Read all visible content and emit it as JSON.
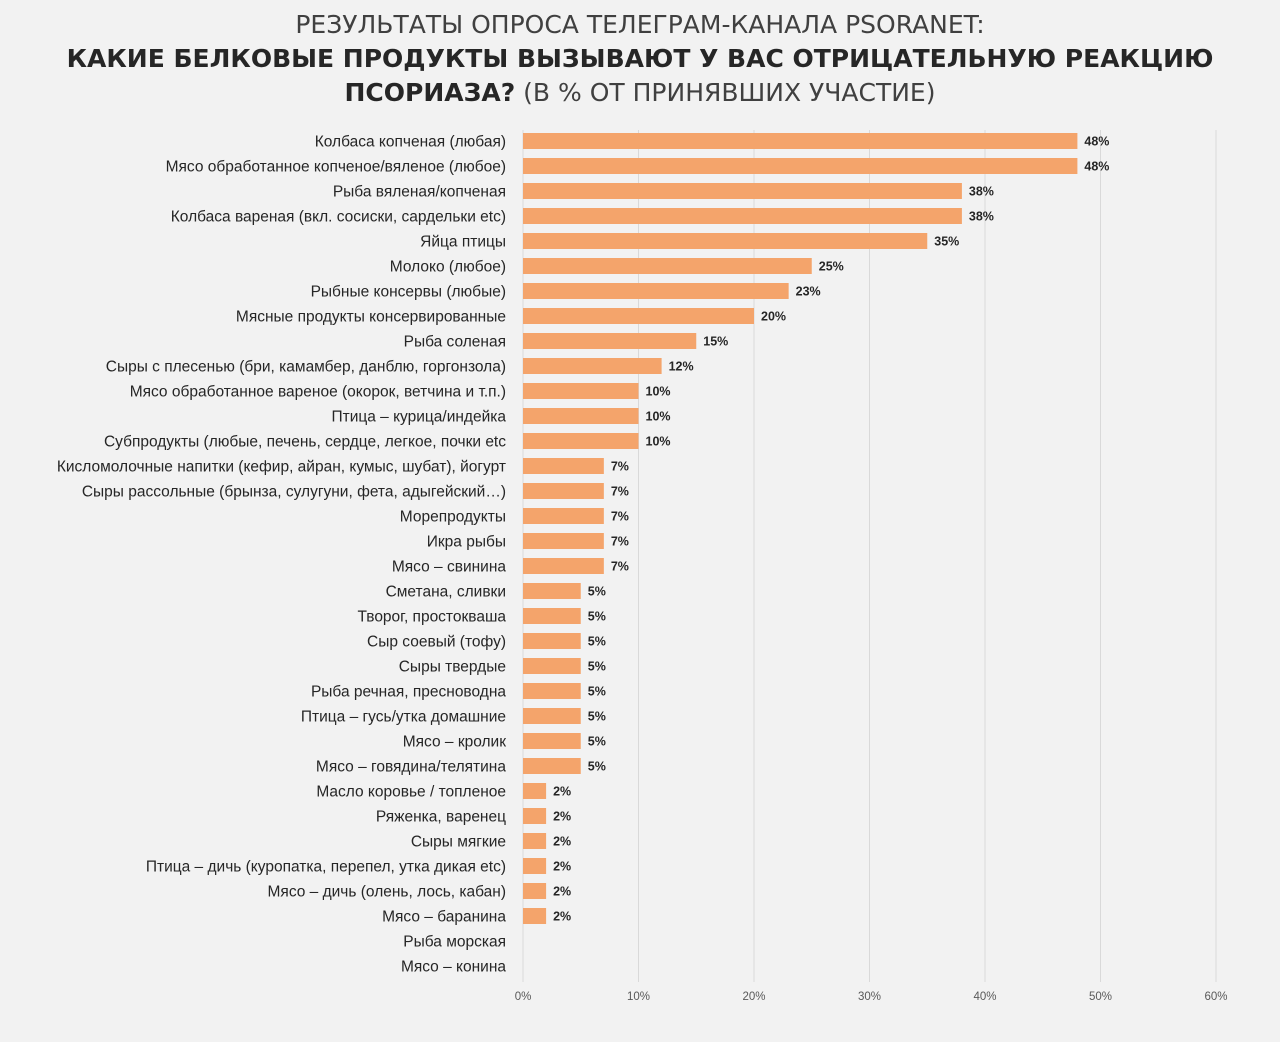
{
  "title": {
    "line1": "РЕЗУЛЬТАТЫ ОПРОСА ТЕЛЕГРАМ-КАНАЛА PSORANET:",
    "line2": "КАКИЕ БЕЛКОВЫЕ ПРОДУКТЫ ВЫЗЫВАЮТ У ВАС ОТРИЦАТЕЛЬНУЮ РЕАКЦИЮ",
    "line3_bold": "ПСОРИАЗА?",
    "line3_rest": " (В % ОТ ПРИНЯВШИХ УЧАСТИЕ)"
  },
  "colors": {
    "bar": "#f4a46b",
    "grid": "#d9d9d9",
    "background": "#f2f2f2"
  },
  "chart_data": {
    "type": "bar",
    "orientation": "horizontal",
    "title": "РЕЗУЛЬТАТЫ ОПРОСА ТЕЛЕГРАМ-КАНАЛА PSORANET: КАКИЕ БЕЛКОВЫЕ ПРОДУКТЫ ВЫЗЫВАЮТ У ВАС ОТРИЦАТЕЛЬНУЮ РЕАКЦИЮ ПСОРИАЗА? (В % ОТ ПРИНЯВШИХ УЧАСТИЕ)",
    "xlim": [
      0,
      60
    ],
    "xticks": [
      0,
      10,
      20,
      30,
      40,
      50,
      60
    ],
    "xtick_labels": [
      "0%",
      "10%",
      "20%",
      "30%",
      "40%",
      "50%",
      "60%"
    ],
    "grid": "vertical",
    "legend": "none",
    "categories": [
      "Колбаса копченая (любая)",
      "Мясо обработанное копченое/вяленое (любое)",
      "Рыба вяленая/копченая",
      "Колбаса вареная (вкл. сосиски, сардельки etc)",
      "Яйца птицы",
      "Молоко (любое)",
      "Рыбные консервы (любые)",
      "Мясные продукты консервированные",
      "Рыба соленая",
      "Сыры с плесенью (бри, камамбер, данблю, горгонзола)",
      "Мясо обработанное вареное (окорок, ветчина и т.п.)",
      "Птица – курица/индейка",
      "Субпродукты (любые, печень, сердце, легкое, почки etc",
      "Кисломолочные напитки (кефир, айран, кумыс, шубат), йогурт",
      "Сыры рассольные (брынза, сулугуни, фета, адыгейский…)",
      "Морепродукты",
      "Икра рыбы",
      "Мясо – свинина",
      "Сметана, сливки",
      "Творог, простокваша",
      "Сыр соевый (тофу)",
      "Сыры твердые",
      "Рыба речная, пресноводна",
      "Птица – гусь/утка домашние",
      "Мясо – кролик",
      "Мясо – говядина/телятина",
      "Масло коровье / топленое",
      "Ряженка, варенец",
      "Сыры мягкие",
      "Птица – дичь (куропатка, перепел, утка дикая etc)",
      "Мясо – дичь (олень, лось, кабан)",
      "Мясо – баранина",
      "Рыба морская",
      "Мясо – конина"
    ],
    "values": [
      48,
      48,
      38,
      38,
      35,
      25,
      23,
      20,
      15,
      12,
      10,
      10,
      10,
      7,
      7,
      7,
      7,
      7,
      5,
      5,
      5,
      5,
      5,
      5,
      5,
      5,
      2,
      2,
      2,
      2,
      2,
      2,
      0,
      0
    ],
    "value_labels": [
      "48%",
      "48%",
      "38%",
      "38%",
      "35%",
      "25%",
      "23%",
      "20%",
      "15%",
      "12%",
      "10%",
      "10%",
      "10%",
      "7%",
      "7%",
      "7%",
      "7%",
      "7%",
      "5%",
      "5%",
      "5%",
      "5%",
      "5%",
      "5%",
      "5%",
      "5%",
      "2%",
      "2%",
      "2%",
      "2%",
      "2%",
      "2%",
      "",
      ""
    ]
  }
}
